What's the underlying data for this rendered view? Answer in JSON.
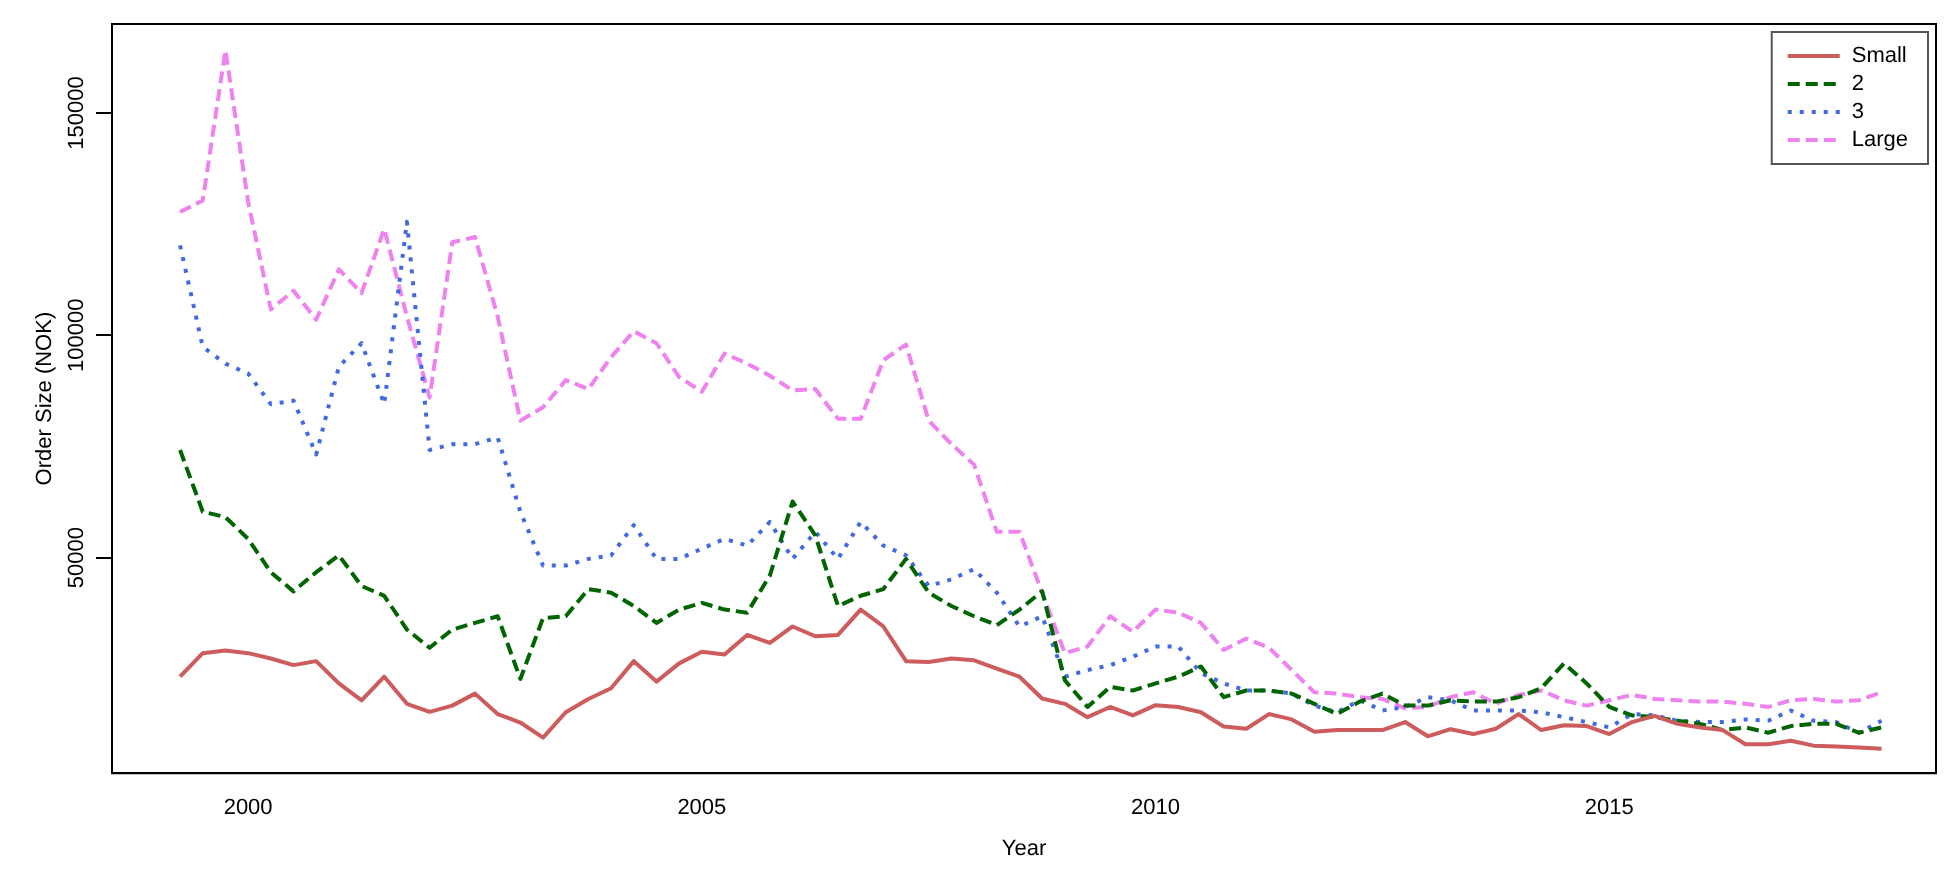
{
  "chart_data": {
    "type": "line",
    "xlabel": "Year",
    "ylabel": "Order Size (NOK)",
    "x": [
      1999.25,
      1999.5,
      1999.75,
      2000,
      2000.25,
      2000.5,
      2000.75,
      2001,
      2001.25,
      2001.5,
      2001.75,
      2002,
      2002.25,
      2002.5,
      2002.75,
      2003,
      2003.25,
      2003.5,
      2003.75,
      2004,
      2004.25,
      2004.5,
      2004.75,
      2005,
      2005.25,
      2005.5,
      2005.75,
      2006,
      2006.25,
      2006.5,
      2006.75,
      2007,
      2007.25,
      2007.5,
      2007.75,
      2008,
      2008.25,
      2008.5,
      2008.75,
      2009,
      2009.25,
      2009.5,
      2009.75,
      2010,
      2010.25,
      2010.5,
      2010.75,
      2011,
      2011.25,
      2011.5,
      2011.75,
      2012,
      2012.25,
      2012.5,
      2012.75,
      2013,
      2013.25,
      2013.5,
      2013.75,
      2014,
      2014.25,
      2014.5,
      2014.75,
      2015,
      2015.25,
      2015.5,
      2015.75,
      2016,
      2016.25,
      2016.5,
      2016.75,
      2017,
      2017.25,
      2017.5,
      2017.75,
      2018
    ],
    "series": [
      {
        "name": "Small",
        "color": "#cd5c5c",
        "line_style": "solid",
        "values": [
          23200,
          28500,
          29100,
          28500,
          27300,
          25800,
          26700,
          21700,
          17900,
          23200,
          17100,
          15300,
          16700,
          19400,
          14800,
          12900,
          9500,
          15200,
          18200,
          20600,
          26700,
          22100,
          26200,
          28800,
          28200,
          32600,
          30800,
          34500,
          32300,
          32600,
          38300,
          34500,
          26700,
          26500,
          27300,
          26900,
          25000,
          23200,
          18300,
          17100,
          14100,
          16400,
          14500,
          16800,
          16400,
          15200,
          12000,
          11500,
          14800,
          13600,
          10800,
          11200,
          11200,
          11200,
          13000,
          9800,
          11400,
          10300,
          11500,
          14800,
          11200,
          12300,
          12100,
          10300,
          13000,
          14400,
          12600,
          11800,
          11200,
          8000,
          8000,
          8800,
          7700,
          7500,
          7300,
          7000
        ]
      },
      {
        "name": "2",
        "color": "#006400",
        "line_style": "dashed",
        "values": [
          74200,
          60300,
          59100,
          54200,
          46700,
          42400,
          46700,
          50500,
          43600,
          41400,
          33800,
          29700,
          33800,
          35300,
          36800,
          22700,
          36400,
          36800,
          42900,
          42100,
          39100,
          35300,
          38300,
          39800,
          38300,
          37600,
          46000,
          62600,
          55000,
          39100,
          41400,
          42900,
          49700,
          42100,
          39100,
          36800,
          34800,
          38300,
          42400,
          22400,
          16400,
          20900,
          20100,
          21700,
          23200,
          25500,
          18600,
          20100,
          20100,
          19400,
          17100,
          14800,
          17600,
          19400,
          16700,
          16700,
          17900,
          17600,
          17600,
          18600,
          20600,
          26200,
          21700,
          16400,
          14500,
          14100,
          13300,
          12600,
          11200,
          11800,
          10600,
          12100,
          12600,
          12600,
          10600,
          11800
        ]
      },
      {
        "name": "3",
        "color": "#4169e1",
        "line_style": "dotted",
        "values": [
          120200,
          97400,
          93600,
          91400,
          84500,
          85300,
          73200,
          92900,
          98200,
          84500,
          125500,
          74200,
          75500,
          75500,
          77000,
          60300,
          48200,
          48200,
          49700,
          50500,
          57300,
          49700,
          49700,
          52000,
          54200,
          52700,
          58000,
          49700,
          55800,
          49700,
          58000,
          52700,
          50500,
          43600,
          45100,
          47400,
          42100,
          34500,
          36800,
          23200,
          24700,
          25800,
          27700,
          30000,
          30000,
          24000,
          21700,
          20100,
          20100,
          19400,
          16700,
          15200,
          17900,
          15600,
          16400,
          18600,
          17900,
          15600,
          15600,
          15600,
          15200,
          14100,
          13000,
          11800,
          14800,
          14500,
          13300,
          13000,
          13000,
          13600,
          13300,
          15600,
          13300,
          13000,
          10600,
          13300
        ]
      },
      {
        "name": "Large",
        "color": "#ee82ee",
        "line_style": "dashed",
        "values": [
          127700,
          130300,
          164100,
          130000,
          105800,
          110000,
          103500,
          114800,
          109500,
          123900,
          104200,
          86000,
          120900,
          122100,
          104200,
          80800,
          83800,
          89900,
          87900,
          95100,
          100900,
          98200,
          90600,
          87300,
          95900,
          93600,
          90900,
          87600,
          87900,
          81200,
          81200,
          94400,
          97900,
          80800,
          75500,
          70900,
          55800,
          55800,
          42100,
          28500,
          30000,
          36800,
          33300,
          38300,
          37600,
          35300,
          29200,
          31800,
          29700,
          24700,
          19700,
          19400,
          18600,
          18200,
          16100,
          16400,
          18600,
          19700,
          17100,
          19100,
          20100,
          17900,
          16700,
          17900,
          19100,
          18200,
          17900,
          17600,
          17600,
          17100,
          16400,
          17900,
          18200,
          17600,
          17900,
          19700
        ]
      }
    ],
    "xlim": [
      1998.5,
      2018.6
    ],
    "xticks": [
      2000,
      2005,
      2010,
      2015
    ],
    "ylim": [
      1500,
      170000
    ],
    "yticks": [
      50000,
      100000,
      150000
    ],
    "grid": false,
    "legend": "top right",
    "marker": "none"
  }
}
